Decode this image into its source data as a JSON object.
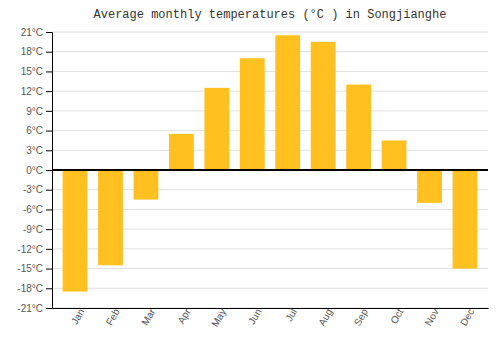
{
  "chart_data": {
    "type": "bar",
    "title": "Average monthly temperatures (°C ) in Songjianghe",
    "categories": [
      "Jan",
      "Feb",
      "Mar",
      "Apr",
      "May",
      "Jun",
      "Jul",
      "Aug",
      "Sep",
      "Oct",
      "Nov",
      "Dec"
    ],
    "values": [
      -18.5,
      -14.5,
      -4.5,
      5.5,
      12.5,
      17,
      20.5,
      19.5,
      13,
      4.5,
      -5,
      -15
    ],
    "color": "#FFC020",
    "ylim": [
      -21,
      21
    ],
    "yticks": [
      {
        "value": -21,
        "label": "-21°C"
      },
      {
        "value": -18,
        "label": "-18°C"
      },
      {
        "value": -15,
        "label": "-15°C"
      },
      {
        "value": -12,
        "label": "-12°C"
      },
      {
        "value": -9,
        "label": "-9°C"
      },
      {
        "value": -6,
        "label": "-6°C"
      },
      {
        "value": -3,
        "label": "-3°C"
      },
      {
        "value": 0,
        "label": "0°C"
      },
      {
        "value": 3,
        "label": "3°C"
      },
      {
        "value": 6,
        "label": "6°C"
      },
      {
        "value": 9,
        "label": "9°C"
      },
      {
        "value": 12,
        "label": "12°C"
      },
      {
        "value": 15,
        "label": "15°C"
      },
      {
        "value": 18,
        "label": "18°C"
      },
      {
        "value": 21,
        "label": "21°C"
      }
    ],
    "grid": true
  }
}
